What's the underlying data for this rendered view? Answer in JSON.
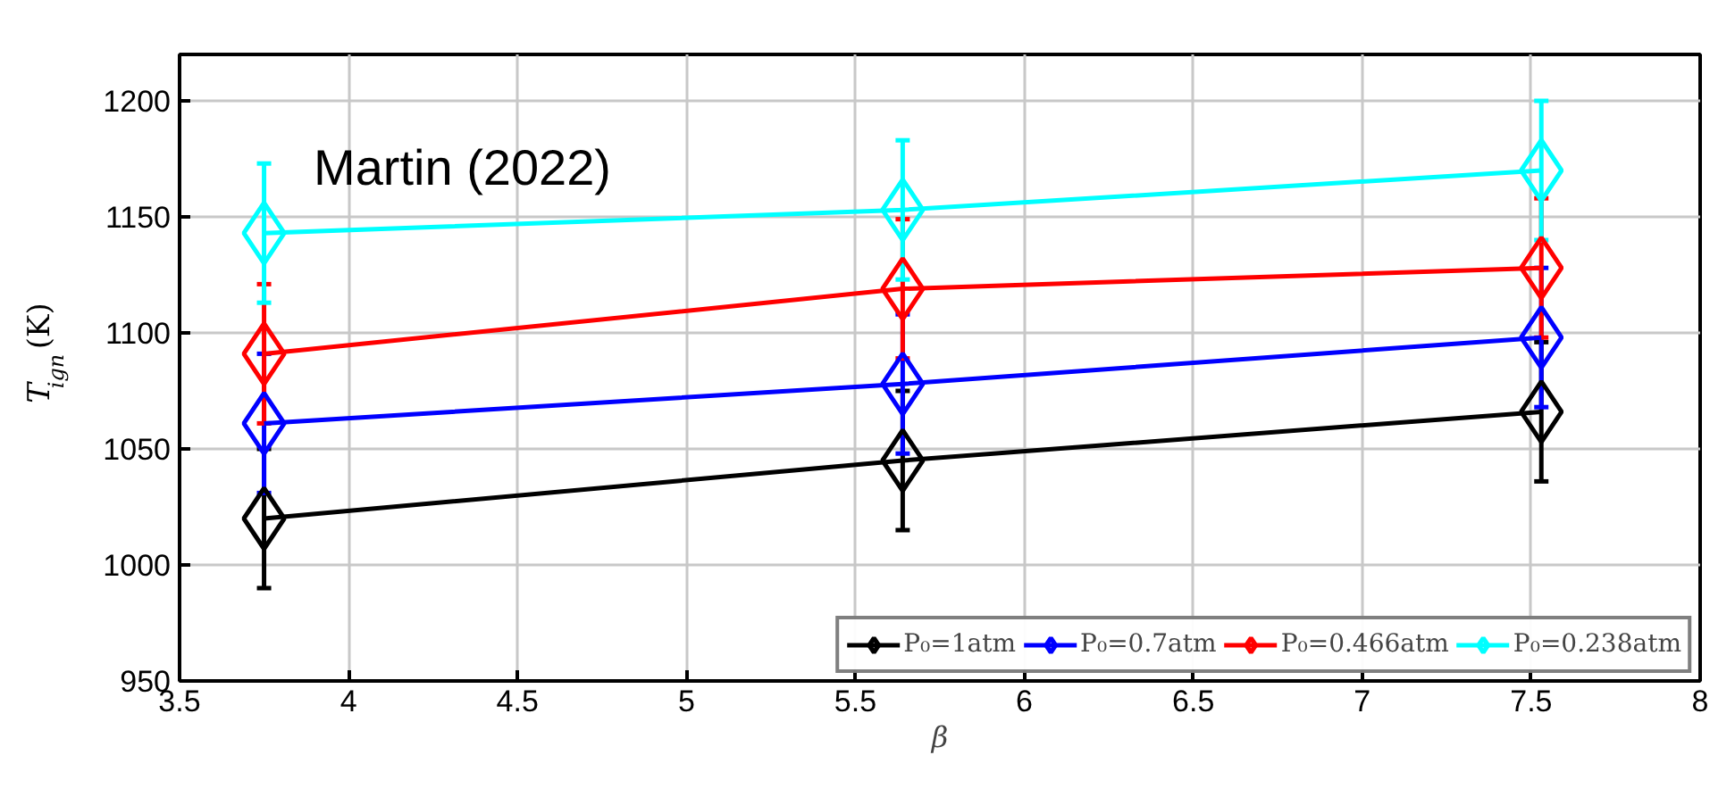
{
  "chart_data": {
    "type": "line",
    "x": [
      3.75,
      5.64,
      7.53
    ],
    "xlabel": "β",
    "ylabel": "T$_{ign}$ (K)",
    "xlim": [
      3.5,
      8
    ],
    "ylim": [
      950,
      1220
    ],
    "xticks": [
      3.5,
      4,
      4.5,
      5,
      5.5,
      6,
      6.5,
      7,
      7.5,
      8
    ],
    "yticks": [
      950,
      1000,
      1050,
      1100,
      1150,
      1200
    ],
    "series": [
      {
        "name": "P₀=1atm",
        "color": "#000000",
        "values": [
          1020,
          1045,
          1066
        ],
        "errors": [
          30,
          30,
          30
        ]
      },
      {
        "name": "P₀=0.7atm",
        "color": "#0000ff",
        "values": [
          1061,
          1078,
          1098
        ],
        "errors": [
          30,
          30,
          30
        ]
      },
      {
        "name": "P₀=0.466atm",
        "color": "#ff0000",
        "values": [
          1091,
          1119,
          1128
        ],
        "errors": [
          30,
          30,
          30
        ]
      },
      {
        "name": "P₀=0.238atm",
        "color": "#00ffff",
        "values": [
          1143,
          1153,
          1170
        ],
        "errors": [
          30,
          30,
          30
        ]
      }
    ],
    "annotations": [
      "Martin (2022)"
    ],
    "marker": "diamond",
    "line_style": "solid",
    "grid": true,
    "legend": "bottom right"
  }
}
